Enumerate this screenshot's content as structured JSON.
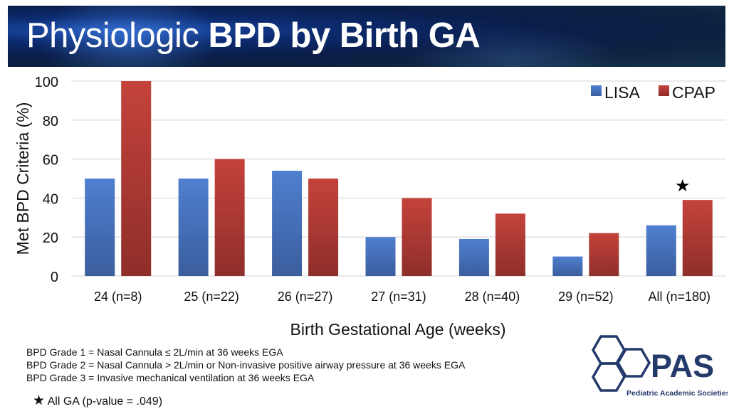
{
  "title": {
    "regular": "Physiologic",
    "bold": "BPD by Birth GA"
  },
  "chart_data": {
    "type": "bar",
    "title": "Physiologic BPD by Birth GA",
    "xlabel": "Birth Gestational Age (weeks)",
    "ylabel": "Met BPD Criteria (%)",
    "ylim": [
      0,
      100
    ],
    "yticks": [
      "0",
      "20",
      "40",
      "60",
      "80",
      "100"
    ],
    "grid": true,
    "legend_position": "top-right",
    "categories": [
      "24 (n=8)",
      "25 (n=22)",
      "26 (n=27)",
      "27 (n=31)",
      "28 (n=40)",
      "29 (n=52)",
      "All (n=180)"
    ],
    "series": [
      {
        "name": "LISA",
        "color": "#4472c4",
        "values": [
          50,
          50,
          54,
          20,
          19,
          10,
          26
        ]
      },
      {
        "name": "CPAP",
        "color": "#c0392b",
        "values": [
          100,
          60,
          50,
          40,
          32,
          22,
          39
        ]
      }
    ],
    "annotations": [
      {
        "category": "All (n=180)",
        "symbol": "★"
      }
    ]
  },
  "notes": [
    "BPD Grade 1 = Nasal Cannula ≤ 2L/min at 36 weeks EGA",
    "BPD Grade 2 = Nasal Cannula > 2L/min or Non-invasive positive airway pressure at 36 weeks EGA",
    "BPD Grade 3 = Invasive mechanical ventilation at 36 weeks EGA"
  ],
  "significance": {
    "symbol": "★",
    "text": "All GA (p-value = .049)"
  },
  "logo": {
    "name": "PAS",
    "subtitle": "Pediatric Academic Societies",
    "color": "#243a6b"
  }
}
